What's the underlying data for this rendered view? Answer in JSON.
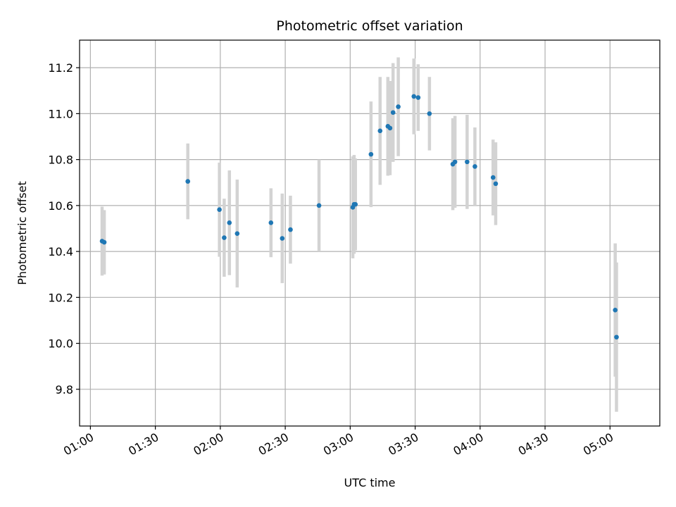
{
  "chart_data": {
    "type": "scatter",
    "title": "Photometric offset variation",
    "xlabel": "UTC time",
    "ylabel": "Photometric offset",
    "x_unit": "HH:MM",
    "xlim": [
      "00:55",
      "05:23"
    ],
    "ylim": [
      9.64,
      11.32
    ],
    "x_ticks": [
      "01:00",
      "01:30",
      "02:00",
      "02:30",
      "03:00",
      "03:30",
      "04:00",
      "04:30",
      "05:00"
    ],
    "y_ticks": [
      9.8,
      10.0,
      10.2,
      10.4,
      10.6,
      10.8,
      11.0,
      11.2
    ],
    "grid": true,
    "point_color": "#1f77b4",
    "errorbar_color": "#d3d3d3",
    "series": [
      {
        "points": [
          {
            "x": "01:05:24",
            "y": 10.445,
            "err": 0.15
          },
          {
            "x": "01:06:24",
            "y": 10.44,
            "err": 0.14
          },
          {
            "x": "01:45:00",
            "y": 10.705,
            "err": 0.165
          },
          {
            "x": "01:59:36",
            "y": 10.582,
            "err": 0.205
          },
          {
            "x": "02:01:48",
            "y": 10.46,
            "err": 0.17
          },
          {
            "x": "02:04:12",
            "y": 10.525,
            "err": 0.228
          },
          {
            "x": "02:07:48",
            "y": 10.478,
            "err": 0.235
          },
          {
            "x": "02:23:24",
            "y": 10.525,
            "err": 0.15
          },
          {
            "x": "02:28:36",
            "y": 10.457,
            "err": 0.195
          },
          {
            "x": "02:32:24",
            "y": 10.495,
            "err": 0.148
          },
          {
            "x": "02:45:36",
            "y": 10.6,
            "err": 0.2
          },
          {
            "x": "03:01:12",
            "y": 10.592,
            "err": 0.222
          },
          {
            "x": "03:01:48",
            "y": 10.605,
            "err": 0.215
          },
          {
            "x": "03:02:24",
            "y": 10.605,
            "err": 0.2
          },
          {
            "x": "03:09:36",
            "y": 10.823,
            "err": 0.23
          },
          {
            "x": "03:13:48",
            "y": 10.925,
            "err": 0.235
          },
          {
            "x": "03:17:24",
            "y": 10.945,
            "err": 0.215
          },
          {
            "x": "03:18:24",
            "y": 10.937,
            "err": 0.205
          },
          {
            "x": "03:19:48",
            "y": 11.005,
            "err": 0.215
          },
          {
            "x": "03:22:12",
            "y": 11.03,
            "err": 0.215
          },
          {
            "x": "03:29:24",
            "y": 11.075,
            "err": 0.165
          },
          {
            "x": "03:31:24",
            "y": 11.07,
            "err": 0.145
          },
          {
            "x": "03:36:36",
            "y": 11.0,
            "err": 0.16
          },
          {
            "x": "03:47:24",
            "y": 10.78,
            "err": 0.2
          },
          {
            "x": "03:48:24",
            "y": 10.79,
            "err": 0.2
          },
          {
            "x": "03:54:00",
            "y": 10.79,
            "err": 0.205
          },
          {
            "x": "03:57:36",
            "y": 10.77,
            "err": 0.17
          },
          {
            "x": "04:06:00",
            "y": 10.722,
            "err": 0.165
          },
          {
            "x": "04:07:12",
            "y": 10.695,
            "err": 0.18
          },
          {
            "x": "05:02:24",
            "y": 10.145,
            "err": 0.29
          },
          {
            "x": "05:03:00",
            "y": 10.027,
            "err": 0.325
          }
        ]
      }
    ]
  }
}
